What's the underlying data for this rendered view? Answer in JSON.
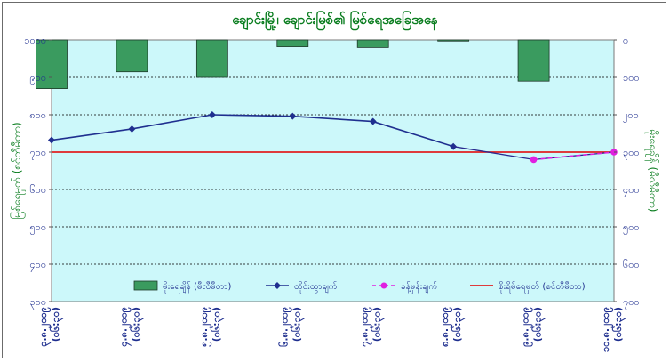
{
  "chart_data": {
    "type": "bar+line",
    "title": "ချောင်းမြို့၊ ချောင်းမြစ်၏ မြစ်ရေအခြေအနေ",
    "categories": [
      "၃.၈.၂၀၁၉ (၀၆:၃၀)",
      "၄.၈.၂၀၁၉ (၀၆:၃၀)",
      "၅.၈.၂၀၁၉ (၀၆:၃၀)",
      "၆.၈.၂၀၁၉ (၀၆:၃၀)",
      "၇.၈.၂၀၁၉ (၀၆:၃၀)",
      "၈.၈.၂၀၁၉ (၀၆:၃၀)",
      "၉.၈.၂၀၁၉ (၀၆:၃၀)",
      "၁၀.၈.၂၀၁၉ (၀၆:၃၀)"
    ],
    "left_axis": {
      "label": "မြစ်ရေမှတ် (စင်တီမီတာ)",
      "ylim": [
        300,
        1000
      ],
      "ticks": [
        "၃၀၀",
        "၄၀၀",
        "၅၀၀",
        "၆၀၀",
        "၇၀၀",
        "၈၀၀",
        "၉၀၀",
        "၁၀၀၀"
      ],
      "tick_values": [
        300,
        400,
        500,
        600,
        700,
        800,
        900,
        1000
      ]
    },
    "right_axis": {
      "label": "မိုးရေချိန် (မီလီမီတာ)",
      "ylim": [
        0,
        700
      ],
      "inverted": true,
      "ticks": [
        "၀",
        "၁၀၀",
        "၂၀၀",
        "၃၀၀",
        "၄၀၀",
        "၅၀၀",
        "၆၀၀",
        "၇၀၀"
      ],
      "tick_values": [
        0,
        100,
        200,
        300,
        400,
        500,
        600,
        700
      ]
    },
    "series": [
      {
        "name": "မိုးရေချိန် (မီလီမီတာ)",
        "kind": "bar",
        "axis": "right",
        "color": "#3a9b5f",
        "values": [
          130,
          85,
          100,
          18,
          20,
          3,
          110,
          null
        ]
      },
      {
        "name": "တိုင်းထွာချက်",
        "kind": "line",
        "axis": "left",
        "color": "#1f2f8f",
        "values": [
          732,
          762,
          800,
          796,
          782,
          715,
          null,
          null
        ]
      },
      {
        "name": "ခန့်မှန်းချက်",
        "kind": "line-dashed",
        "axis": "left",
        "color": "#e020e0",
        "values": [
          null,
          null,
          null,
          null,
          null,
          null,
          680,
          700
        ]
      },
      {
        "name": "စိုးရိမ်ရေမှတ် (စင်တီမီတာ)",
        "kind": "hline",
        "axis": "left",
        "color": "#e02020",
        "value": 700
      }
    ],
    "grid": true,
    "legend_placement": "bottom"
  },
  "colors": {
    "plot_bg": "#ccf8fa",
    "bar_fill": "#3a9b5f",
    "observed_line": "#1f2f8f",
    "forecast_line": "#e020e0",
    "danger_line": "#e02020"
  }
}
